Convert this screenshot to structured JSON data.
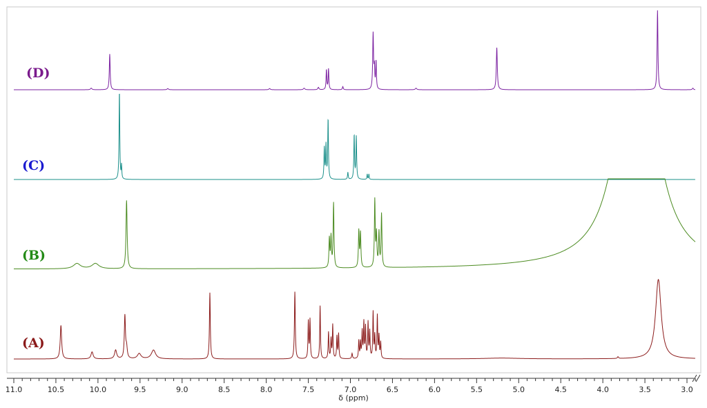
{
  "chart_data": {
    "type": "line",
    "title": "",
    "xlabel": "δ (ppm)",
    "ylabel": "",
    "xlim": [
      11.0,
      2.9
    ],
    "x_reversed": true,
    "x_ticks": [
      "11.0",
      "10.5",
      "10.0",
      "9.5",
      "9.0",
      "8.5",
      "8.0",
      "7.5",
      "7.0",
      "6.5",
      "6.0",
      "5.5",
      "5.0",
      "4.5",
      "4.0",
      "3.5",
      "3.0"
    ],
    "grid": false,
    "legend": "none",
    "series": [
      {
        "name": "(D)",
        "color": "#7a1fa0",
        "label_color": "#7a1a8c",
        "peaks": [
          {
            "x": 10.08,
            "h": 0.02,
            "w": 0.01
          },
          {
            "x": 9.86,
            "h": 0.45,
            "w": 0.006
          },
          {
            "x": 9.17,
            "h": 0.015,
            "w": 0.01
          },
          {
            "x": 7.96,
            "h": 0.015,
            "w": 0.01
          },
          {
            "x": 7.55,
            "h": 0.02,
            "w": 0.01
          },
          {
            "x": 7.38,
            "h": 0.03,
            "w": 0.008
          },
          {
            "x": 7.285,
            "h": 0.25,
            "w": 0.005
          },
          {
            "x": 7.26,
            "h": 0.26,
            "w": 0.005
          },
          {
            "x": 7.09,
            "h": 0.04,
            "w": 0.006
          },
          {
            "x": 6.73,
            "h": 0.7,
            "w": 0.006
          },
          {
            "x": 6.715,
            "h": 0.25,
            "w": 0.005
          },
          {
            "x": 6.695,
            "h": 0.35,
            "w": 0.005
          },
          {
            "x": 6.22,
            "h": 0.02,
            "w": 0.01
          },
          {
            "x": 5.26,
            "h": 0.53,
            "w": 0.007
          },
          {
            "x": 3.35,
            "h": 1.0,
            "w": 0.006
          },
          {
            "x": 2.93,
            "h": 0.02,
            "w": 0.008
          }
        ]
      },
      {
        "name": "(C)",
        "color": "#1a8f8a",
        "label_color": "#1a1ad0",
        "peaks": [
          {
            "x": 9.745,
            "h": 1.0,
            "w": 0.005
          },
          {
            "x": 9.72,
            "h": 0.15,
            "w": 0.004
          },
          {
            "x": 7.31,
            "h": 0.35,
            "w": 0.005
          },
          {
            "x": 7.29,
            "h": 0.38,
            "w": 0.005
          },
          {
            "x": 7.265,
            "h": 0.68,
            "w": 0.005
          },
          {
            "x": 7.03,
            "h": 0.08,
            "w": 0.005
          },
          {
            "x": 6.955,
            "h": 0.5,
            "w": 0.005
          },
          {
            "x": 6.93,
            "h": 0.48,
            "w": 0.005
          },
          {
            "x": 6.8,
            "h": 0.06,
            "w": 0.004
          },
          {
            "x": 6.78,
            "h": 0.06,
            "w": 0.004
          }
        ]
      },
      {
        "name": "(B)",
        "color": "#4a8a1f",
        "label_color": "#238a16",
        "peaks": [
          {
            "x": 10.25,
            "h": 0.07,
            "w": 0.05
          },
          {
            "x": 10.03,
            "h": 0.07,
            "w": 0.05
          },
          {
            "x": 9.66,
            "h": 0.9,
            "w": 0.008
          },
          {
            "x": 7.25,
            "h": 0.38,
            "w": 0.006
          },
          {
            "x": 7.23,
            "h": 0.4,
            "w": 0.006
          },
          {
            "x": 7.2,
            "h": 0.85,
            "w": 0.006
          },
          {
            "x": 6.9,
            "h": 0.48,
            "w": 0.006
          },
          {
            "x": 6.88,
            "h": 0.45,
            "w": 0.006
          },
          {
            "x": 6.71,
            "h": 0.88,
            "w": 0.006
          },
          {
            "x": 6.69,
            "h": 0.42,
            "w": 0.006
          },
          {
            "x": 6.66,
            "h": 0.45,
            "w": 0.006
          },
          {
            "x": 6.63,
            "h": 0.7,
            "w": 0.006
          },
          {
            "x": 3.6,
            "h": 4.0,
            "w": 0.22
          }
        ]
      },
      {
        "name": "(A)",
        "color": "#8b1a1a",
        "label_color": "#8b1a1a",
        "peaks": [
          {
            "x": 10.44,
            "h": 0.38,
            "w": 0.01
          },
          {
            "x": 10.07,
            "h": 0.08,
            "w": 0.015
          },
          {
            "x": 9.79,
            "h": 0.1,
            "w": 0.015
          },
          {
            "x": 9.68,
            "h": 0.48,
            "w": 0.008
          },
          {
            "x": 9.66,
            "h": 0.12,
            "w": 0.01
          },
          {
            "x": 9.51,
            "h": 0.06,
            "w": 0.025
          },
          {
            "x": 9.34,
            "h": 0.1,
            "w": 0.03
          },
          {
            "x": 8.67,
            "h": 0.75,
            "w": 0.006
          },
          {
            "x": 7.66,
            "h": 0.76,
            "w": 0.006
          },
          {
            "x": 7.5,
            "h": 0.42,
            "w": 0.005
          },
          {
            "x": 7.48,
            "h": 0.44,
            "w": 0.005
          },
          {
            "x": 7.36,
            "h": 0.6,
            "w": 0.005
          },
          {
            "x": 7.26,
            "h": 0.3,
            "w": 0.005
          },
          {
            "x": 7.23,
            "h": 0.22,
            "w": 0.005
          },
          {
            "x": 7.21,
            "h": 0.38,
            "w": 0.005
          },
          {
            "x": 7.16,
            "h": 0.25,
            "w": 0.005
          },
          {
            "x": 7.14,
            "h": 0.28,
            "w": 0.005
          },
          {
            "x": 6.98,
            "h": 0.06,
            "w": 0.006
          },
          {
            "x": 6.9,
            "h": 0.2,
            "w": 0.005
          },
          {
            "x": 6.88,
            "h": 0.18,
            "w": 0.005
          },
          {
            "x": 6.86,
            "h": 0.3,
            "w": 0.005
          },
          {
            "x": 6.84,
            "h": 0.4,
            "w": 0.005
          },
          {
            "x": 6.82,
            "h": 0.35,
            "w": 0.005
          },
          {
            "x": 6.79,
            "h": 0.4,
            "w": 0.005
          },
          {
            "x": 6.77,
            "h": 0.3,
            "w": 0.005
          },
          {
            "x": 6.73,
            "h": 0.52,
            "w": 0.005
          },
          {
            "x": 6.71,
            "h": 0.25,
            "w": 0.005
          },
          {
            "x": 6.68,
            "h": 0.48,
            "w": 0.005
          },
          {
            "x": 6.66,
            "h": 0.25,
            "w": 0.005
          },
          {
            "x": 6.64,
            "h": 0.18,
            "w": 0.005
          },
          {
            "x": 5.2,
            "h": 0.01,
            "w": 0.25
          },
          {
            "x": 3.82,
            "h": 0.02,
            "w": 0.008
          },
          {
            "x": 3.34,
            "h": 0.9,
            "w": 0.04
          }
        ]
      }
    ]
  }
}
